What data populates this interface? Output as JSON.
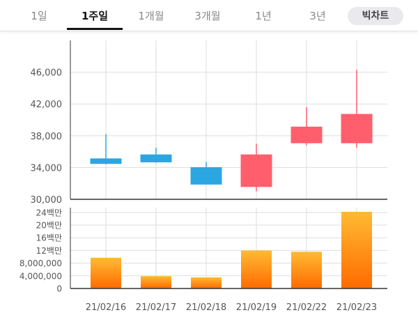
{
  "tabs": [
    {
      "label": "1일",
      "active": false
    },
    {
      "label": "1주일",
      "active": true
    },
    {
      "label": "1개월",
      "active": false
    },
    {
      "label": "3개월",
      "active": false
    },
    {
      "label": "1년",
      "active": false
    },
    {
      "label": "3년",
      "active": false
    },
    {
      "label": "빅차트",
      "active": false
    }
  ],
  "colors": {
    "up": "#ff5f6d",
    "down": "#2ca6e0",
    "volume_top": "#ffbb33",
    "volume_bottom": "#ff6a00",
    "grid": "#dddddd",
    "axis": "#333333"
  },
  "chart_data": [
    {
      "type": "candlestick",
      "categories": [
        "21/02/16",
        "21/02/17",
        "21/02/18",
        "21/02/19",
        "21/02/22",
        "21/02/23"
      ],
      "series": [
        {
          "open": [
            35100,
            35600,
            34000,
            31600,
            37100,
            37100
          ],
          "high": [
            38200,
            36500,
            34700,
            37000,
            41600,
            46300
          ],
          "low": [
            34400,
            34600,
            31900,
            31000,
            36800,
            36500
          ],
          "close": [
            34500,
            34700,
            31900,
            35600,
            39100,
            40700
          ]
        }
      ],
      "yticks": [
        "30,000",
        "34,000",
        "38,000",
        "42,000",
        "46,000"
      ],
      "ytick_values": [
        30000,
        34000,
        38000,
        42000,
        46000
      ],
      "ylim": [
        30000,
        50000
      ],
      "grid": true
    },
    {
      "type": "bar",
      "categories": [
        "21/02/16",
        "21/02/17",
        "21/02/18",
        "21/02/19",
        "21/02/22",
        "21/02/23"
      ],
      "values": [
        9700000,
        3900000,
        3500000,
        12000000,
        11600000,
        24200000
      ],
      "yticks": [
        "0",
        "4,000,000",
        "8,000,000",
        "12백만",
        "16백만",
        "20백만",
        "24백만"
      ],
      "ytick_values": [
        0,
        4000000,
        8000000,
        12000000,
        16000000,
        20000000,
        24000000
      ],
      "ylim": [
        0,
        25500000
      ],
      "grid": true
    }
  ]
}
